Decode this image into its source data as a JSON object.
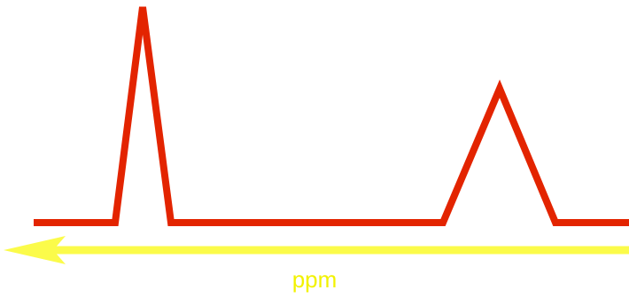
{
  "diagram": {
    "axis_label": "ppm",
    "colors": {
      "spectrum_line": "#e32400",
      "axis_arrow": "#fbfb4a",
      "axis_label": "#f2f200",
      "background": "#ffffff"
    },
    "icons": {
      "axis_arrow": "left-arrow-icon"
    }
  }
}
